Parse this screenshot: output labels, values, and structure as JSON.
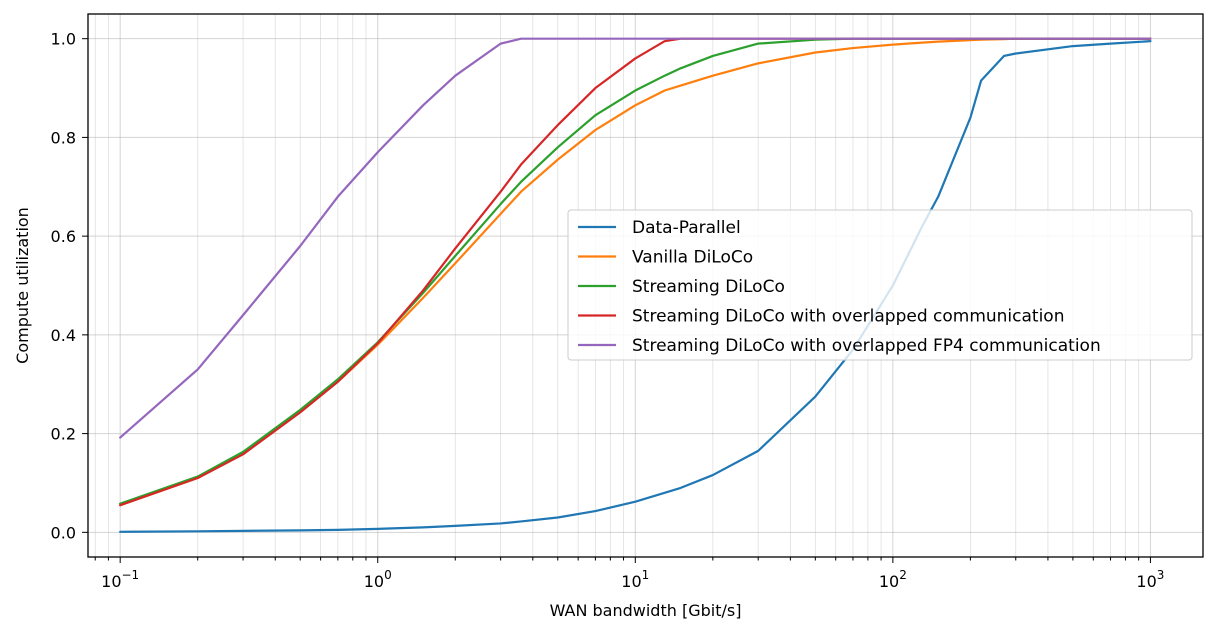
{
  "chart_data": {
    "type": "line",
    "xscale": "log",
    "xlabel": "WAN bandwidth [Gbit/s]",
    "ylabel": "Compute utilization",
    "xlim": [
      0.075,
      1600
    ],
    "ylim": [
      -0.05,
      1.05
    ],
    "grid": true,
    "legend_position": "center-right",
    "x_tick_values": [
      0.1,
      1,
      10,
      100,
      1000
    ],
    "x_tick_labels": [
      {
        "base": "10",
        "exp": "−1"
      },
      {
        "base": "10",
        "exp": "0"
      },
      {
        "base": "10",
        "exp": "1"
      },
      {
        "base": "10",
        "exp": "2"
      },
      {
        "base": "10",
        "exp": "3"
      }
    ],
    "y_ticks": [
      0.0,
      0.2,
      0.4,
      0.6,
      0.8,
      1.0
    ],
    "y_tick_labels": [
      "0.0",
      "0.2",
      "0.4",
      "0.6",
      "0.8",
      "1.0"
    ],
    "x": [
      0.1,
      0.2,
      0.3,
      0.5,
      0.7,
      1,
      1.5,
      2,
      3,
      3.6,
      5,
      7,
      10,
      13,
      15,
      20,
      30,
      50,
      70,
      100,
      130,
      150,
      200,
      220,
      270,
      300,
      500,
      700,
      1000
    ],
    "series": [
      {
        "name": "Data-Parallel",
        "color": "#1f77b4",
        "values": [
          0.001,
          0.002,
          0.003,
          0.004,
          0.005,
          0.007,
          0.01,
          0.013,
          0.018,
          0.022,
          0.03,
          0.043,
          0.062,
          0.08,
          0.09,
          0.116,
          0.165,
          0.275,
          0.37,
          0.5,
          0.62,
          0.68,
          0.84,
          0.915,
          0.965,
          0.97,
          0.985,
          0.99,
          0.995
        ]
      },
      {
        "name": "Vanilla DiLoCo",
        "color": "#ff7f0e",
        "values": [
          0.055,
          0.11,
          0.16,
          0.245,
          0.305,
          0.38,
          0.475,
          0.545,
          0.645,
          0.69,
          0.755,
          0.815,
          0.865,
          0.895,
          0.905,
          0.925,
          0.95,
          0.972,
          0.981,
          0.988,
          0.992,
          0.994,
          0.997,
          0.998,
          0.999,
          1.0,
          1.0,
          1.0,
          1.0
        ]
      },
      {
        "name": "Streaming DiLoCo",
        "color": "#2ca02c",
        "values": [
          0.058,
          0.113,
          0.163,
          0.248,
          0.31,
          0.385,
          0.485,
          0.56,
          0.665,
          0.71,
          0.78,
          0.845,
          0.895,
          0.925,
          0.94,
          0.965,
          0.99,
          0.998,
          1.0,
          1.0,
          1.0,
          1.0,
          1.0,
          1.0,
          1.0,
          1.0,
          1.0,
          1.0,
          1.0
        ]
      },
      {
        "name": "Streaming DiLoCo with overlapped communication",
        "color": "#d62728",
        "values": [
          0.055,
          0.11,
          0.158,
          0.243,
          0.305,
          0.383,
          0.49,
          0.575,
          0.69,
          0.745,
          0.825,
          0.9,
          0.96,
          0.995,
          1.0,
          1.0,
          1.0,
          1.0,
          1.0,
          1.0,
          1.0,
          1.0,
          1.0,
          1.0,
          1.0,
          1.0,
          1.0,
          1.0,
          1.0
        ]
      },
      {
        "name": "Streaming DiLoCo with overlapped FP4 communication",
        "color": "#9467bd",
        "values": [
          0.192,
          0.33,
          0.44,
          0.58,
          0.68,
          0.77,
          0.865,
          0.925,
          0.99,
          1.0,
          1.0,
          1.0,
          1.0,
          1.0,
          1.0,
          1.0,
          1.0,
          1.0,
          1.0,
          1.0,
          1.0,
          1.0,
          1.0,
          1.0,
          1.0,
          1.0,
          1.0,
          1.0,
          1.0
        ]
      }
    ]
  }
}
